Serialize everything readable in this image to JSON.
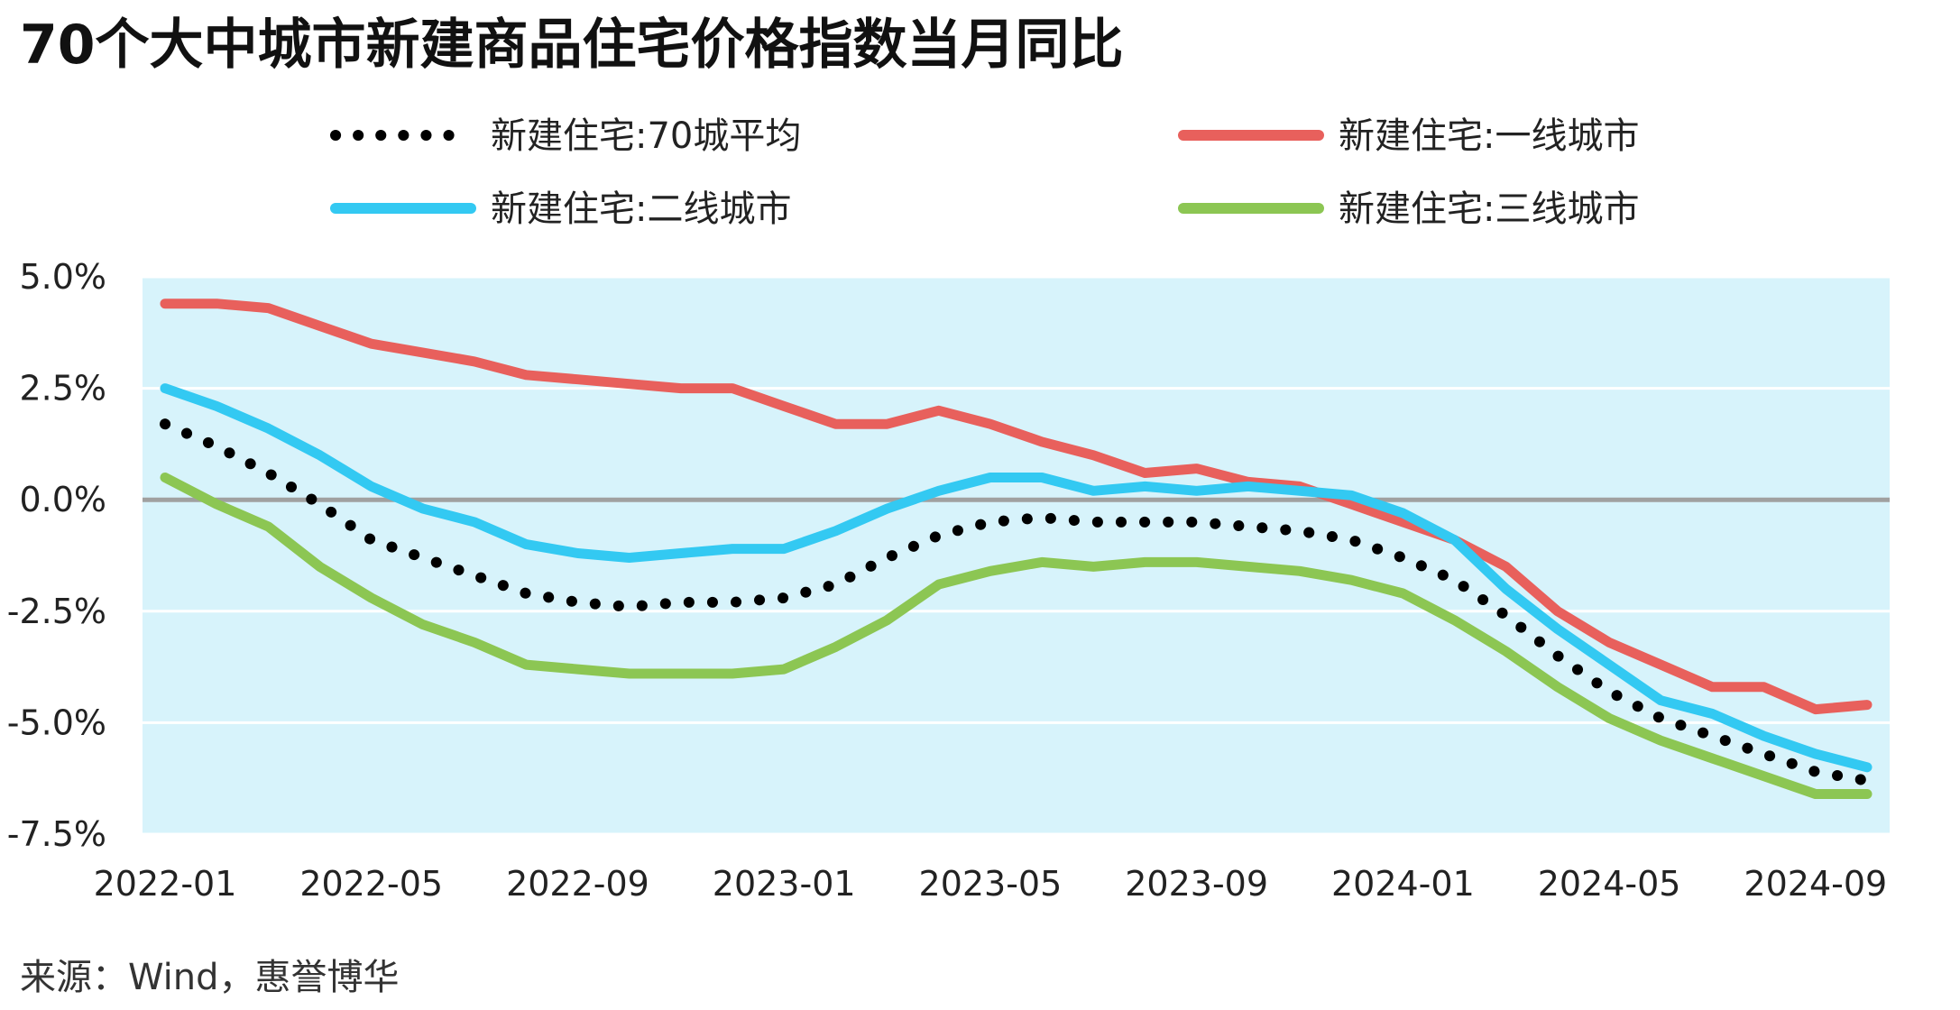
{
  "chart_data": {
    "type": "line",
    "title": "70个大中城市新建商品住宅价格指数当月同比",
    "source": "来源：Wind，惠誉博华",
    "xlabel": "",
    "ylabel": "",
    "x": [
      "2022-01",
      "2022-02",
      "2022-03",
      "2022-04",
      "2022-05",
      "2022-06",
      "2022-07",
      "2022-08",
      "2022-09",
      "2022-10",
      "2022-11",
      "2022-12",
      "2023-01",
      "2023-02",
      "2023-03",
      "2023-04",
      "2023-05",
      "2023-06",
      "2023-07",
      "2023-08",
      "2023-09",
      "2023-10",
      "2023-11",
      "2023-12",
      "2024-01",
      "2024-02",
      "2024-03",
      "2024-04",
      "2024-05",
      "2024-06",
      "2024-07",
      "2024-08",
      "2024-09",
      "2024-10"
    ],
    "x_tick_labels": [
      "2022-01",
      "2022-05",
      "2022-09",
      "2023-01",
      "2023-05",
      "2023-09",
      "2024-01",
      "2024-05",
      "2024-09"
    ],
    "y_tick_labels": [
      "5.0%",
      "2.5%",
      "0.0%",
      "-2.5%",
      "-5.0%",
      "-7.5%"
    ],
    "ylim": [
      -7.5,
      5.0
    ],
    "yticks": [
      5.0,
      2.5,
      0.0,
      -2.5,
      -5.0,
      -7.5
    ],
    "grid": true,
    "plot_background": "#d7f3fb",
    "zero_line_color": "#a0a0a0",
    "legend_position": "top",
    "series": [
      {
        "name": "新建住宅:70城平均",
        "color": "#000000",
        "style": "dotted",
        "values": [
          1.7,
          1.2,
          0.6,
          -0.1,
          -0.9,
          -1.3,
          -1.7,
          -2.1,
          -2.3,
          -2.4,
          -2.3,
          -2.3,
          -2.2,
          -1.9,
          -1.3,
          -0.8,
          -0.5,
          -0.4,
          -0.5,
          -0.5,
          -0.5,
          -0.6,
          -0.7,
          -0.9,
          -1.3,
          -1.8,
          -2.6,
          -3.5,
          -4.3,
          -4.9,
          -5.3,
          -5.7,
          -6.1,
          -6.3
        ]
      },
      {
        "name": "新建住宅:一线城市",
        "color": "#e8605c",
        "style": "solid",
        "values": [
          4.4,
          4.4,
          4.3,
          3.9,
          3.5,
          3.3,
          3.1,
          2.8,
          2.7,
          2.6,
          2.5,
          2.5,
          2.1,
          1.7,
          1.7,
          2.0,
          1.7,
          1.3,
          1.0,
          0.6,
          0.7,
          0.4,
          0.3,
          -0.1,
          -0.5,
          -0.9,
          -1.5,
          -2.5,
          -3.2,
          -3.7,
          -4.2,
          -4.2,
          -4.7,
          -4.6
        ]
      },
      {
        "name": "新建住宅:二线城市",
        "color": "#33c9f2",
        "style": "solid",
        "values": [
          2.5,
          2.1,
          1.6,
          1.0,
          0.3,
          -0.2,
          -0.5,
          -1.0,
          -1.2,
          -1.3,
          -1.2,
          -1.1,
          -1.1,
          -0.7,
          -0.2,
          0.2,
          0.5,
          0.5,
          0.2,
          0.3,
          0.2,
          0.3,
          0.2,
          0.1,
          -0.3,
          -0.9,
          -2.0,
          -2.9,
          -3.7,
          -4.5,
          -4.8,
          -5.3,
          -5.7,
          -6.0
        ]
      },
      {
        "name": "新建住宅:三线城市",
        "color": "#8cc653",
        "style": "solid",
        "values": [
          0.5,
          -0.1,
          -0.6,
          -1.5,
          -2.2,
          -2.8,
          -3.2,
          -3.7,
          -3.8,
          -3.9,
          -3.9,
          -3.9,
          -3.8,
          -3.3,
          -2.7,
          -1.9,
          -1.6,
          -1.4,
          -1.5,
          -1.4,
          -1.4,
          -1.5,
          -1.6,
          -1.8,
          -2.1,
          -2.7,
          -3.4,
          -4.2,
          -4.9,
          -5.4,
          -5.8,
          -6.2,
          -6.6,
          -6.6
        ]
      }
    ]
  }
}
